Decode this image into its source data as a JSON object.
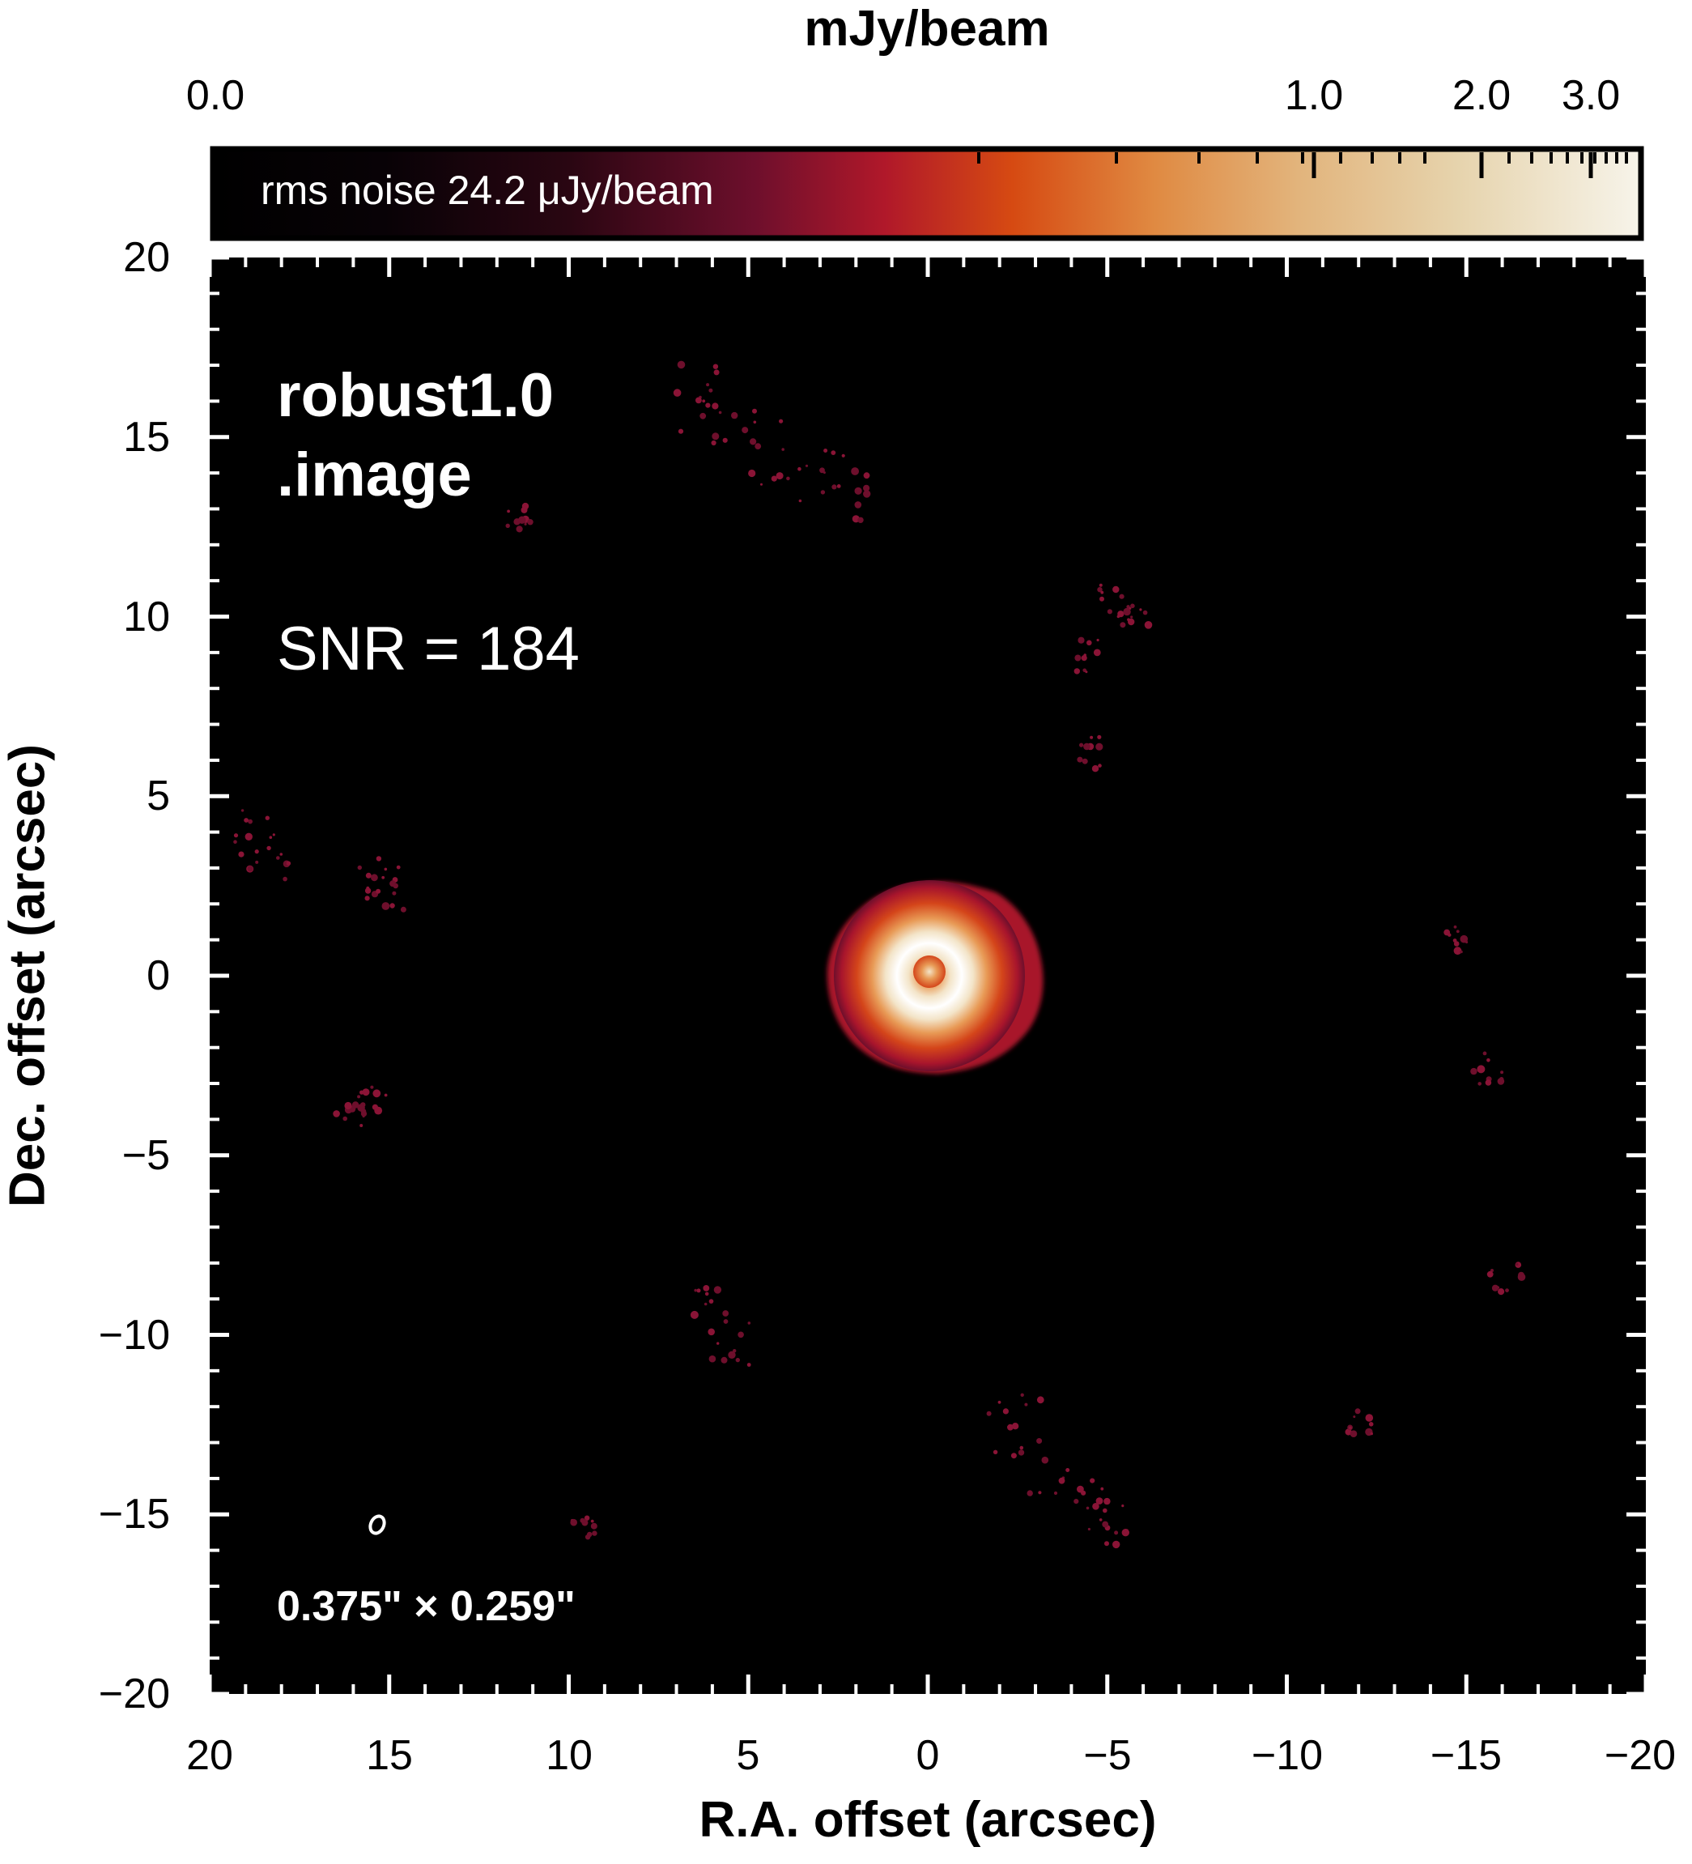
{
  "colorbar": {
    "title": "mJy/beam",
    "tick_labels": [
      "0.0",
      "1.0",
      "2.0",
      "3.0"
    ],
    "note": "rms noise 24.2 μJy/beam",
    "colors": [
      "#000000",
      "#2a0612",
      "#6e0f2c",
      "#b0182a",
      "#d64a12",
      "#e08a42",
      "#e2b47c",
      "#e6d3ac",
      "#f7f4ea"
    ]
  },
  "image": {
    "label_line1": "robust1.0",
    "label_line2": ".image",
    "snr_label": "SNR = 184",
    "beam_label": "0.375\" × 0.259\"",
    "source_colors": [
      "#ffffff",
      "#f3e4c8",
      "#e89a56",
      "#d4451a",
      "#a8152c"
    ]
  },
  "axes": {
    "xlabel": "R.A. offset (arcsec)",
    "ylabel": "Dec. offset (arcsec)",
    "x_ticks": [
      "20",
      "15",
      "10",
      "5",
      "0",
      "−5",
      "−10",
      "−15",
      "−20"
    ],
    "y_ticks": [
      "20",
      "15",
      "10",
      "5",
      "0",
      "−5",
      "−10",
      "−15",
      "−20"
    ],
    "xlim": [
      20,
      -20
    ],
    "ylim": [
      -20,
      20
    ]
  }
}
